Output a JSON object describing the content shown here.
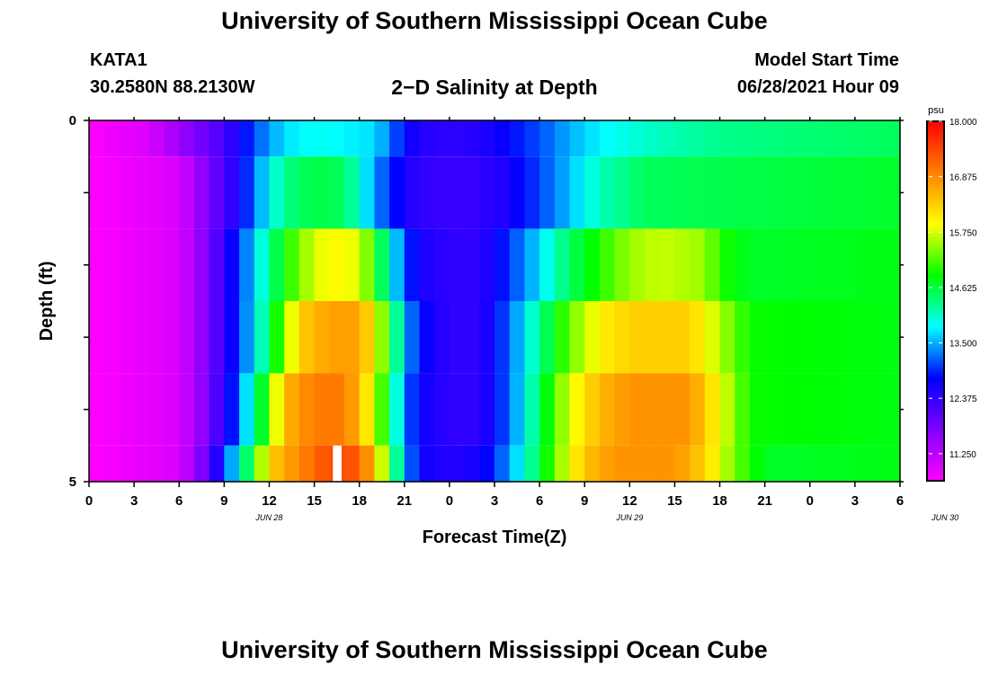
{
  "title": "University of Southern Mississippi Ocean Cube",
  "footer_title": "University of Southern Mississippi Ocean Cube",
  "station": {
    "name": "KATA1",
    "coordinates": "30.2580N  88.2130W"
  },
  "model_start": {
    "label": "Model Start Time",
    "value": "06/28/2021 Hour 09"
  },
  "chart_data": {
    "type": "heatmap",
    "title": "2−D Salinity at Depth",
    "xlabel": "Forecast Time(Z)",
    "ylabel": "Depth (ft)",
    "x_ticks": [
      "0",
      "3",
      "6",
      "9",
      "12",
      "15",
      "18",
      "21",
      "0",
      "3",
      "6",
      "9",
      "12",
      "15",
      "18",
      "21",
      "0",
      "3",
      "6"
    ],
    "date_labels": [
      {
        "text": "JUN 28",
        "hour": 12
      },
      {
        "text": "JUN 29",
        "hour": 36
      },
      {
        "text": "JUN 30",
        "hour": 57
      }
    ],
    "y_ticks": [
      "0",
      "5"
    ],
    "ylim": [
      0,
      5
    ],
    "xlim_hours": [
      0,
      54
    ],
    "colorbar": {
      "unit": "psu",
      "min": 10.7,
      "max": 18.0,
      "ticks": [
        "18.000",
        "16.875",
        "15.750",
        "14.625",
        "13.500",
        "12.375",
        "11.250"
      ],
      "tick_values": [
        18.0,
        16.875,
        15.75,
        14.625,
        13.5,
        12.375,
        11.25
      ],
      "colors": [
        "#ff00ff",
        "#7f00ff",
        "#0000ff",
        "#00ffff",
        "#00ff00",
        "#ffff00",
        "#ff8000",
        "#ff0000"
      ]
    },
    "depth_layers": [
      {
        "depth_range": [
          0.0,
          0.5
        ],
        "profile": [
          [
            0,
            10.7
          ],
          [
            4,
            11.0
          ],
          [
            9,
            12.2
          ],
          [
            11,
            13.1
          ],
          [
            13,
            13.7
          ],
          [
            15,
            13.9
          ],
          [
            17,
            13.8
          ],
          [
            19,
            13.7
          ],
          [
            20,
            13.3
          ],
          [
            21,
            12.8
          ],
          [
            22,
            12.5
          ],
          [
            24,
            12.4
          ],
          [
            26,
            12.5
          ],
          [
            28,
            12.8
          ],
          [
            30,
            13.1
          ],
          [
            32,
            13.5
          ],
          [
            34,
            13.8
          ],
          [
            38,
            14.1
          ],
          [
            42,
            14.3
          ],
          [
            54,
            14.5
          ]
        ]
      },
      {
        "depth_range": [
          0.5,
          1.5
        ],
        "profile": [
          [
            0,
            10.7
          ],
          [
            6,
            11.0
          ],
          [
            8,
            11.8
          ],
          [
            10,
            12.6
          ],
          [
            11,
            13.3
          ],
          [
            13,
            14.3
          ],
          [
            15,
            14.6
          ],
          [
            17,
            14.5
          ],
          [
            18,
            14.0
          ],
          [
            19,
            13.4
          ],
          [
            20,
            13.0
          ],
          [
            21,
            12.6
          ],
          [
            22,
            12.4
          ],
          [
            25,
            12.3
          ],
          [
            28,
            12.6
          ],
          [
            31,
            13.3
          ],
          [
            34,
            14.1
          ],
          [
            37,
            14.5
          ],
          [
            45,
            14.6
          ],
          [
            54,
            14.7
          ]
        ]
      },
      {
        "depth_range": [
          1.5,
          2.5
        ],
        "profile": [
          [
            0,
            10.7
          ],
          [
            6,
            11.0
          ],
          [
            8,
            11.8
          ],
          [
            10,
            13.0
          ],
          [
            12,
            14.3
          ],
          [
            14,
            15.4
          ],
          [
            16,
            16.0
          ],
          [
            18,
            15.8
          ],
          [
            19,
            15.0
          ],
          [
            20,
            14.0
          ],
          [
            21,
            13.1
          ],
          [
            22,
            12.6
          ],
          [
            24,
            12.4
          ],
          [
            26,
            12.4
          ],
          [
            28,
            13.0
          ],
          [
            30,
            13.7
          ],
          [
            32,
            14.5
          ],
          [
            34,
            15.0
          ],
          [
            36,
            15.5
          ],
          [
            38,
            15.7
          ],
          [
            41,
            15.5
          ],
          [
            42,
            15.0
          ],
          [
            44,
            14.7
          ],
          [
            54,
            14.8
          ]
        ]
      },
      {
        "depth_range": [
          2.5,
          3.5
        ],
        "profile": [
          [
            0,
            10.7
          ],
          [
            6,
            11.0
          ],
          [
            8,
            11.8
          ],
          [
            10,
            13.0
          ],
          [
            12,
            14.5
          ],
          [
            14,
            16.3
          ],
          [
            16,
            16.7
          ],
          [
            18,
            16.7
          ],
          [
            19,
            16.0
          ],
          [
            20,
            14.9
          ],
          [
            21,
            13.6
          ],
          [
            22,
            12.8
          ],
          [
            24,
            12.4
          ],
          [
            26,
            12.4
          ],
          [
            28,
            13.2
          ],
          [
            30,
            14.3
          ],
          [
            32,
            15.3
          ],
          [
            34,
            16.0
          ],
          [
            36,
            16.3
          ],
          [
            40,
            16.3
          ],
          [
            42,
            15.6
          ],
          [
            44,
            14.9
          ],
          [
            54,
            14.8
          ]
        ]
      },
      {
        "depth_range": [
          3.5,
          4.5
        ],
        "profile": [
          [
            0,
            10.7
          ],
          [
            6,
            11.0
          ],
          [
            8,
            11.8
          ],
          [
            10,
            13.2
          ],
          [
            12,
            15.2
          ],
          [
            13,
            16.5
          ],
          [
            15,
            17.0
          ],
          [
            17,
            17.0
          ],
          [
            18,
            16.5
          ],
          [
            19,
            15.7
          ],
          [
            20,
            14.6
          ],
          [
            21,
            13.3
          ],
          [
            22,
            12.7
          ],
          [
            24,
            12.4
          ],
          [
            26,
            12.4
          ],
          [
            28,
            13.2
          ],
          [
            30,
            14.5
          ],
          [
            32,
            15.8
          ],
          [
            34,
            16.5
          ],
          [
            36,
            16.8
          ],
          [
            40,
            16.8
          ],
          [
            42,
            15.9
          ],
          [
            44,
            14.9
          ],
          [
            54,
            14.8
          ]
        ]
      },
      {
        "depth_range": [
          4.5,
          5.0
        ],
        "profile": [
          [
            0,
            10.7
          ],
          [
            6,
            11.0
          ],
          [
            8,
            12.0
          ],
          [
            9,
            13.0
          ],
          [
            11,
            14.9
          ],
          [
            12,
            16.3
          ],
          [
            14,
            16.9
          ],
          [
            16,
            17.4
          ],
          [
            18,
            17.3
          ],
          [
            19,
            16.4
          ],
          [
            20,
            15.0
          ],
          [
            21,
            13.5
          ],
          [
            22,
            12.7
          ],
          [
            24,
            12.5
          ],
          [
            26,
            12.6
          ],
          [
            28,
            13.4
          ],
          [
            30,
            14.6
          ],
          [
            31,
            15.3
          ],
          [
            33,
            16.4
          ],
          [
            35,
            16.8
          ],
          [
            39,
            16.8
          ],
          [
            41,
            16.3
          ],
          [
            43,
            15.3
          ],
          [
            45,
            14.7
          ],
          [
            54,
            14.8
          ]
        ]
      }
    ],
    "missing_cell": {
      "hour": 16,
      "depth_range": [
        4.5,
        5.0
      ]
    }
  }
}
